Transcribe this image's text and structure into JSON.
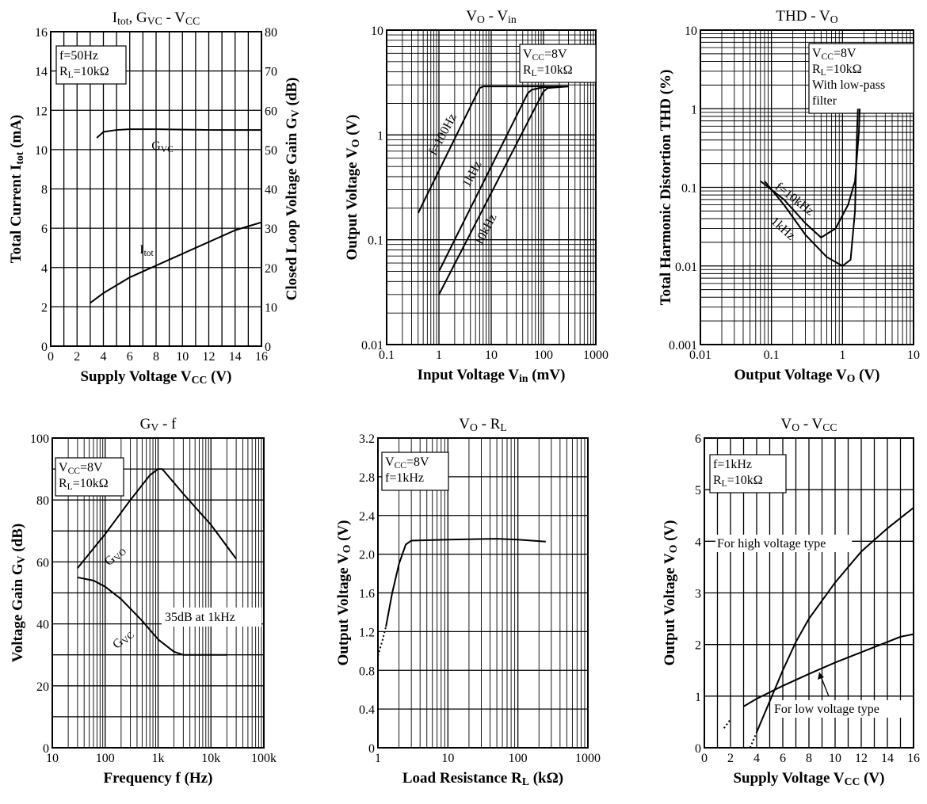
{
  "chart_data": [
    {
      "id": "itot-gvc-vcc",
      "type": "line",
      "title": "Itot, GVC - VCC",
      "xlabel": "Supply Voltage VCC (V)",
      "ylabel": "Total Current Itot (mA)",
      "y2label": "Closed Loop Voltage Gain GV (dB)",
      "xscale": "linear",
      "yscale": "linear",
      "xlim": [
        0,
        16
      ],
      "ylim": [
        0,
        16
      ],
      "y2lim": [
        0,
        80
      ],
      "xticks": [
        "0",
        "2",
        "4",
        "6",
        "8",
        "10",
        "12",
        "14",
        "16"
      ],
      "yticks": [
        "0",
        "2",
        "4",
        "6",
        "8",
        "10",
        "12",
        "14",
        "16"
      ],
      "y2ticks": [
        "0",
        "10",
        "20",
        "30",
        "40",
        "50",
        "60",
        "70",
        "80"
      ],
      "grid": true,
      "conditions": [
        "f=50Hz",
        "RL=10kΩ"
      ],
      "series": [
        {
          "name": "Itot",
          "axis": "left",
          "x": [
            3,
            4,
            5,
            6,
            7,
            8,
            9,
            10,
            11,
            12,
            13,
            14,
            15,
            16
          ],
          "y": [
            2.2,
            2.7,
            3.1,
            3.5,
            3.8,
            4.1,
            4.4,
            4.7,
            5.0,
            5.3,
            5.6,
            5.9,
            6.1,
            6.3
          ]
        },
        {
          "name": "GVC",
          "axis": "right",
          "x": [
            3.5,
            4,
            5,
            6,
            8,
            10,
            12,
            14,
            16
          ],
          "y": [
            53,
            54.5,
            55,
            55.2,
            55.2,
            55.1,
            55,
            55,
            55
          ]
        }
      ],
      "annotations": [
        "GVC",
        "Itot"
      ]
    },
    {
      "id": "vo-vin",
      "type": "line",
      "title": "VO - Vin",
      "xlabel": "Input Voltage Vin (mV)",
      "ylabel": "Output Voltage VO (V)",
      "xscale": "log",
      "yscale": "log",
      "xlim": [
        0.1,
        1000
      ],
      "ylim": [
        0.01,
        10
      ],
      "xticks": [
        "0.1",
        "1",
        "10",
        "100",
        "1000"
      ],
      "yticks": [
        "0.01",
        "0.1",
        "1",
        "10"
      ],
      "grid": true,
      "conditions": [
        "VCC=8V",
        "RL=10kΩ"
      ],
      "series": [
        {
          "name": "f=100Hz",
          "x": [
            0.4,
            6,
            7,
            60,
            150,
            300
          ],
          "y": [
            0.18,
            2.8,
            2.9,
            2.9,
            2.9,
            2.9
          ]
        },
        {
          "name": "1kHz",
          "x": [
            1,
            50,
            60,
            100,
            200
          ],
          "y": [
            0.05,
            2.5,
            2.7,
            2.85,
            2.9
          ]
        },
        {
          "name": "10kHz",
          "x": [
            1,
            100,
            120,
            300
          ],
          "y": [
            0.03,
            2.6,
            2.8,
            2.9
          ]
        }
      ],
      "annotations": [
        "f=100Hz",
        "1kHz",
        "10kHz"
      ]
    },
    {
      "id": "thd-vo",
      "type": "line",
      "title": "THD - VO",
      "xlabel": "Output Voltage VO (V)",
      "ylabel": "Total Harmonic Distortion THD (%)",
      "xscale": "log",
      "yscale": "log",
      "xlim": [
        0.01,
        10
      ],
      "ylim": [
        0.001,
        10
      ],
      "xticks": [
        "0.01",
        "0.1",
        "1",
        "10"
      ],
      "yticks": [
        "0.001",
        "0.01",
        "0.1",
        "1",
        "10"
      ],
      "grid": true,
      "conditions": [
        "VCC=8V",
        "RL=10kΩ",
        "With low-pass",
        "filter"
      ],
      "series": [
        {
          "name": "f=10kHz",
          "x": [
            0.07,
            0.15,
            0.3,
            0.5,
            0.8,
            1.2,
            1.5,
            1.7,
            1.75
          ],
          "y": [
            0.12,
            0.07,
            0.035,
            0.023,
            0.03,
            0.06,
            0.12,
            0.5,
            1.0
          ]
        },
        {
          "name": "1kHz",
          "x": [
            0.08,
            0.15,
            0.3,
            0.6,
            1.0,
            1.3,
            1.5,
            1.6,
            1.65
          ],
          "y": [
            0.12,
            0.06,
            0.025,
            0.013,
            0.01,
            0.012,
            0.05,
            0.5,
            1.0
          ]
        }
      ],
      "annotations": [
        "f=10kHz",
        "1kHz"
      ]
    },
    {
      "id": "gv-f",
      "type": "line",
      "title": "GV - f",
      "xlabel": "Frequency f (Hz)",
      "ylabel": "Voltage Gain GV (dB)",
      "xscale": "log",
      "yscale": "linear",
      "xlim": [
        10,
        100000
      ],
      "ylim": [
        0,
        100
      ],
      "xticks": [
        "10",
        "100",
        "1k",
        "10k",
        "100k"
      ],
      "yticks": [
        "0",
        "20",
        "40",
        "60",
        "80",
        "100"
      ],
      "grid": true,
      "conditions": [
        "VCC=8V",
        "RL=10kΩ"
      ],
      "series": [
        {
          "name": "GVO",
          "x": [
            30,
            100,
            300,
            700,
            1000,
            1200,
            3000,
            10000,
            30000
          ],
          "y": [
            58,
            69,
            80,
            88,
            90,
            90,
            82,
            72,
            61
          ]
        },
        {
          "name": "GVC",
          "x": [
            30,
            60,
            100,
            200,
            500,
            1000,
            2000,
            3000,
            5000,
            20000
          ],
          "y": [
            55,
            54,
            52,
            48,
            41,
            35,
            31,
            30,
            30,
            30
          ]
        }
      ],
      "annotations": [
        "GVO",
        "GVC",
        "35dB at 1kHz"
      ]
    },
    {
      "id": "vo-rl",
      "type": "line",
      "title": "VO - RL",
      "xlabel": "Load Resistance RL (kΩ)",
      "ylabel": "Output Voltage VO (V)",
      "xscale": "log",
      "yscale": "linear",
      "xlim": [
        1,
        1000
      ],
      "ylim": [
        0,
        3.2
      ],
      "xticks": [
        "1",
        "10",
        "100",
        "1000"
      ],
      "yticks": [
        "0",
        "0.4",
        "0.8",
        "1.2",
        "1.6",
        "2.0",
        "2.4",
        "2.8",
        "3.2"
      ],
      "grid": true,
      "conditions": [
        "VCC=8V",
        "f=1kHz"
      ],
      "series": [
        {
          "name": "VO",
          "x": [
            1,
            1.15,
            1.3,
            1.6,
            2,
            2.5,
            3,
            10,
            50,
            100,
            250
          ],
          "y": [
            0.95,
            1.1,
            1.25,
            1.6,
            1.9,
            2.1,
            2.14,
            2.15,
            2.16,
            2.15,
            2.13
          ],
          "dashed_below_x": 1.3
        }
      ]
    },
    {
      "id": "vo-vcc",
      "type": "line",
      "title": "VO - VCC",
      "xlabel": "Supply Voltage VCC (V)",
      "ylabel": "Output Voltage VO (V)",
      "xscale": "linear",
      "yscale": "linear",
      "xlim": [
        0,
        16
      ],
      "ylim": [
        0,
        6
      ],
      "xticks": [
        "0",
        "2",
        "4",
        "6",
        "8",
        "10",
        "12",
        "14",
        "16"
      ],
      "yticks": [
        "0",
        "1",
        "2",
        "3",
        "4",
        "5",
        "6"
      ],
      "grid": true,
      "conditions": [
        "f=1kHz",
        "RL=10kΩ"
      ],
      "series": [
        {
          "name": "For high voltage type",
          "x": [
            3.5,
            4,
            4.5,
            5,
            6,
            7,
            8,
            10,
            12,
            14,
            16
          ],
          "y": [
            0,
            0.3,
            0.6,
            0.9,
            1.5,
            2.05,
            2.5,
            3.2,
            3.8,
            4.25,
            4.65
          ],
          "dashed_below_x": 4
        },
        {
          "name": "For low voltage type",
          "x": [
            1.5,
            2,
            3,
            4,
            6,
            8,
            10,
            12,
            14,
            15,
            16
          ],
          "y": [
            0.38,
            0.55,
            0.8,
            0.95,
            1.2,
            1.43,
            1.65,
            1.85,
            2.05,
            2.15,
            2.2
          ],
          "dashed_below_x": 2.5
        }
      ],
      "annotations": [
        "For high voltage type",
        "For low voltage type"
      ]
    }
  ]
}
